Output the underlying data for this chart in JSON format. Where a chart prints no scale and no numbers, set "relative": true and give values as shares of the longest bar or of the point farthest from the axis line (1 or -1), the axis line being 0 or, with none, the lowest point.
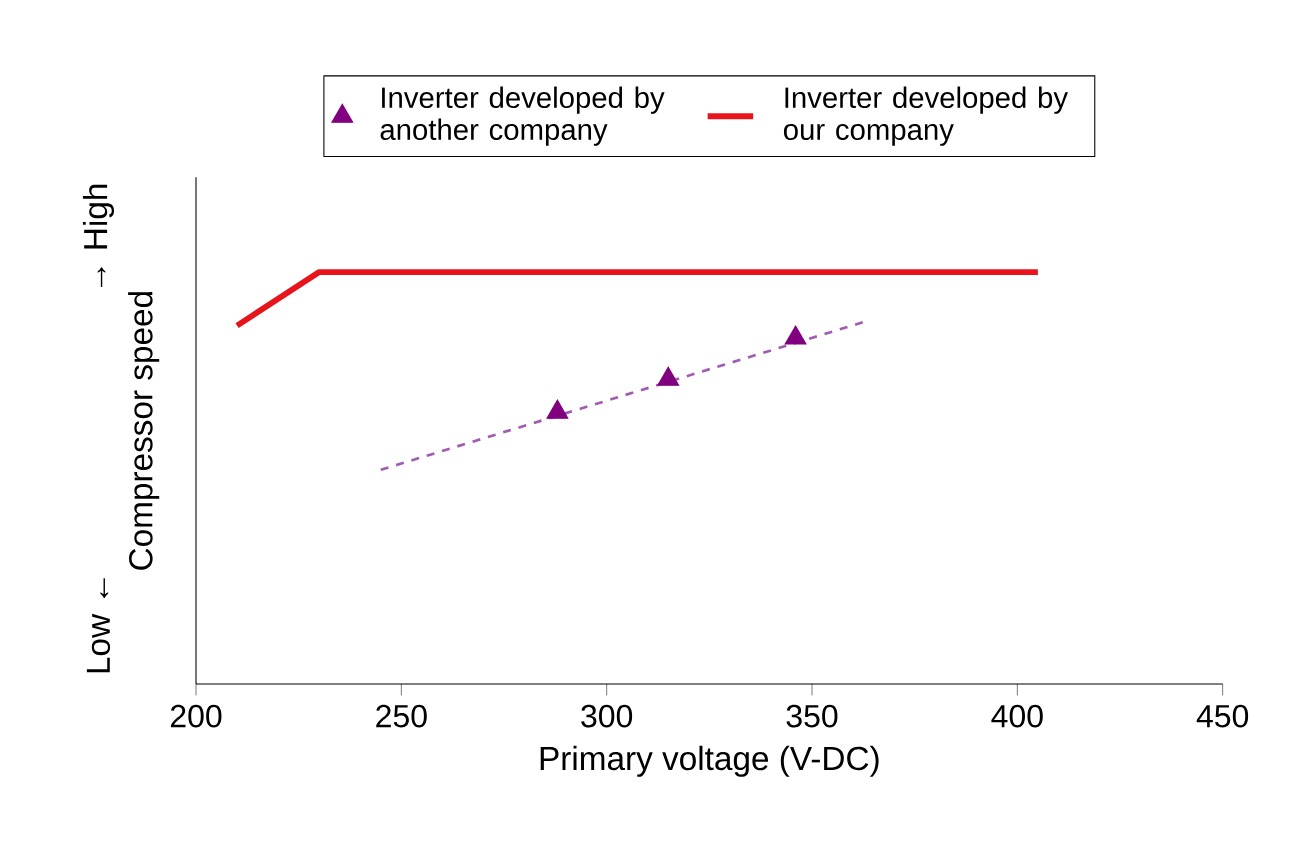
{
  "chart_data": {
    "type": "line",
    "relative": true,
    "xlabel": "Primary voltage (V-DC)",
    "ylabel": "Compressor speed",
    "annotations": [
      "→ High",
      "Low ←"
    ],
    "xlim": [
      200,
      450
    ],
    "xticks": [
      200,
      250,
      300,
      350,
      400,
      450
    ],
    "grid": false,
    "legend": "top",
    "series": [
      {
        "name": "Inverter developed by another company",
        "type": "scatter",
        "color": "#800080",
        "marker": "triangle",
        "x": [
          288,
          315,
          346
        ],
        "values": [
          0.66,
          0.74,
          0.84
        ]
      },
      {
        "color": "#a05cb0",
        "line_style": "dashed",
        "marker": "none",
        "x": [
          245,
          363
        ],
        "values": [
          0.52,
          0.88
        ]
      },
      {
        "name": "Inverter developed by our company",
        "type": "line",
        "color": "#e8141c",
        "line_style": "solid",
        "marker": "none",
        "x": [
          210,
          230,
          405
        ],
        "values": [
          0.87,
          1,
          1
        ]
      }
    ]
  }
}
